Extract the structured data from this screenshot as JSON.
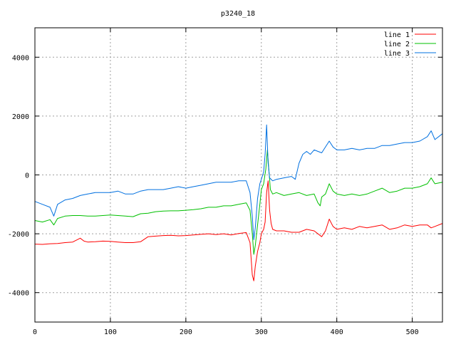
{
  "chart_data": {
    "type": "line",
    "title": "p3240_18",
    "xlabel": "",
    "ylabel": "",
    "xlim": [
      0,
      540
    ],
    "ylim": [
      -5000,
      5000
    ],
    "x_ticks": [
      0,
      100,
      200,
      300,
      400,
      500
    ],
    "y_ticks": [
      -4000,
      -2000,
      0,
      2000,
      4000
    ],
    "x_tick_labels": [
      "0",
      "100",
      "200",
      "300",
      "400",
      "500"
    ],
    "y_tick_labels": [
      "-4000",
      "-2000",
      "0",
      "2000",
      "4000"
    ],
    "grid": true,
    "legend_position": "top-right",
    "series": [
      {
        "name": "line 1",
        "color": "#ff0000",
        "points": [
          [
            0,
            -2350
          ],
          [
            10,
            -2360
          ],
          [
            20,
            -2340
          ],
          [
            30,
            -2330
          ],
          [
            40,
            -2300
          ],
          [
            50,
            -2280
          ],
          [
            60,
            -2150
          ],
          [
            65,
            -2250
          ],
          [
            70,
            -2280
          ],
          [
            80,
            -2270
          ],
          [
            90,
            -2250
          ],
          [
            100,
            -2260
          ],
          [
            110,
            -2280
          ],
          [
            120,
            -2300
          ],
          [
            130,
            -2300
          ],
          [
            140,
            -2270
          ],
          [
            150,
            -2100
          ],
          [
            160,
            -2080
          ],
          [
            170,
            -2060
          ],
          [
            180,
            -2050
          ],
          [
            190,
            -2070
          ],
          [
            200,
            -2060
          ],
          [
            210,
            -2040
          ],
          [
            220,
            -2020
          ],
          [
            230,
            -2000
          ],
          [
            240,
            -2030
          ],
          [
            250,
            -2000
          ],
          [
            260,
            -2040
          ],
          [
            270,
            -1990
          ],
          [
            280,
            -1960
          ],
          [
            285,
            -2300
          ],
          [
            288,
            -3400
          ],
          [
            290,
            -3600
          ],
          [
            292,
            -3100
          ],
          [
            295,
            -2600
          ],
          [
            298,
            -2300
          ],
          [
            300,
            -2000
          ],
          [
            303,
            -1850
          ],
          [
            305,
            -1600
          ],
          [
            307,
            -600
          ],
          [
            309,
            -200
          ],
          [
            311,
            -1200
          ],
          [
            313,
            -1650
          ],
          [
            315,
            -1850
          ],
          [
            320,
            -1900
          ],
          [
            330,
            -1900
          ],
          [
            340,
            -1950
          ],
          [
            350,
            -1950
          ],
          [
            360,
            -1850
          ],
          [
            370,
            -1900
          ],
          [
            380,
            -2100
          ],
          [
            385,
            -1900
          ],
          [
            390,
            -1500
          ],
          [
            395,
            -1750
          ],
          [
            400,
            -1850
          ],
          [
            410,
            -1800
          ],
          [
            420,
            -1850
          ],
          [
            430,
            -1750
          ],
          [
            440,
            -1800
          ],
          [
            450,
            -1750
          ],
          [
            460,
            -1700
          ],
          [
            470,
            -1850
          ],
          [
            480,
            -1800
          ],
          [
            490,
            -1700
          ],
          [
            500,
            -1750
          ],
          [
            510,
            -1700
          ],
          [
            520,
            -1700
          ],
          [
            525,
            -1800
          ],
          [
            530,
            -1750
          ],
          [
            540,
            -1650
          ]
        ]
      },
      {
        "name": "line 2",
        "color": "#00c000",
        "points": [
          [
            0,
            -1550
          ],
          [
            10,
            -1600
          ],
          [
            20,
            -1520
          ],
          [
            25,
            -1700
          ],
          [
            30,
            -1480
          ],
          [
            40,
            -1400
          ],
          [
            50,
            -1380
          ],
          [
            60,
            -1380
          ],
          [
            70,
            -1400
          ],
          [
            80,
            -1400
          ],
          [
            90,
            -1380
          ],
          [
            100,
            -1360
          ],
          [
            110,
            -1380
          ],
          [
            120,
            -1400
          ],
          [
            130,
            -1420
          ],
          [
            140,
            -1320
          ],
          [
            150,
            -1300
          ],
          [
            160,
            -1250
          ],
          [
            170,
            -1230
          ],
          [
            180,
            -1220
          ],
          [
            190,
            -1220
          ],
          [
            200,
            -1200
          ],
          [
            210,
            -1180
          ],
          [
            220,
            -1150
          ],
          [
            230,
            -1100
          ],
          [
            240,
            -1100
          ],
          [
            250,
            -1050
          ],
          [
            260,
            -1050
          ],
          [
            270,
            -1000
          ],
          [
            280,
            -950
          ],
          [
            285,
            -1200
          ],
          [
            288,
            -2000
          ],
          [
            290,
            -2700
          ],
          [
            292,
            -2400
          ],
          [
            295,
            -1700
          ],
          [
            298,
            -1000
          ],
          [
            300,
            -500
          ],
          [
            303,
            -300
          ],
          [
            306,
            200
          ],
          [
            308,
            850
          ],
          [
            310,
            150
          ],
          [
            312,
            -500
          ],
          [
            315,
            -650
          ],
          [
            320,
            -600
          ],
          [
            330,
            -700
          ],
          [
            340,
            -650
          ],
          [
            350,
            -600
          ],
          [
            360,
            -700
          ],
          [
            370,
            -650
          ],
          [
            375,
            -950
          ],
          [
            378,
            -1050
          ],
          [
            380,
            -750
          ],
          [
            385,
            -650
          ],
          [
            390,
            -300
          ],
          [
            395,
            -550
          ],
          [
            400,
            -650
          ],
          [
            410,
            -700
          ],
          [
            420,
            -650
          ],
          [
            430,
            -700
          ],
          [
            440,
            -650
          ],
          [
            450,
            -550
          ],
          [
            460,
            -450
          ],
          [
            470,
            -600
          ],
          [
            480,
            -550
          ],
          [
            490,
            -450
          ],
          [
            500,
            -450
          ],
          [
            510,
            -400
          ],
          [
            520,
            -300
          ],
          [
            525,
            -100
          ],
          [
            530,
            -300
          ],
          [
            540,
            -250
          ]
        ]
      },
      {
        "name": "line 3",
        "color": "#0070e0",
        "points": [
          [
            0,
            -900
          ],
          [
            10,
            -1000
          ],
          [
            20,
            -1100
          ],
          [
            25,
            -1400
          ],
          [
            30,
            -1000
          ],
          [
            40,
            -850
          ],
          [
            50,
            -800
          ],
          [
            60,
            -700
          ],
          [
            70,
            -650
          ],
          [
            80,
            -600
          ],
          [
            90,
            -600
          ],
          [
            100,
            -600
          ],
          [
            110,
            -550
          ],
          [
            120,
            -650
          ],
          [
            130,
            -650
          ],
          [
            140,
            -550
          ],
          [
            150,
            -500
          ],
          [
            160,
            -500
          ],
          [
            170,
            -500
          ],
          [
            180,
            -450
          ],
          [
            190,
            -400
          ],
          [
            200,
            -450
          ],
          [
            210,
            -400
          ],
          [
            220,
            -350
          ],
          [
            230,
            -300
          ],
          [
            240,
            -250
          ],
          [
            250,
            -250
          ],
          [
            260,
            -250
          ],
          [
            270,
            -200
          ],
          [
            280,
            -200
          ],
          [
            285,
            -600
          ],
          [
            288,
            -1400
          ],
          [
            290,
            -2200
          ],
          [
            292,
            -1800
          ],
          [
            295,
            -800
          ],
          [
            298,
            -300
          ],
          [
            300,
            -150
          ],
          [
            303,
            100
          ],
          [
            305,
            700
          ],
          [
            307,
            1700
          ],
          [
            309,
            400
          ],
          [
            311,
            -100
          ],
          [
            315,
            -200
          ],
          [
            320,
            -150
          ],
          [
            330,
            -100
          ],
          [
            340,
            -50
          ],
          [
            345,
            -150
          ],
          [
            350,
            400
          ],
          [
            355,
            700
          ],
          [
            360,
            800
          ],
          [
            365,
            700
          ],
          [
            370,
            850
          ],
          [
            380,
            750
          ],
          [
            390,
            1150
          ],
          [
            395,
            950
          ],
          [
            400,
            850
          ],
          [
            410,
            850
          ],
          [
            420,
            900
          ],
          [
            430,
            850
          ],
          [
            440,
            900
          ],
          [
            450,
            900
          ],
          [
            460,
            1000
          ],
          [
            470,
            1000
          ],
          [
            480,
            1050
          ],
          [
            490,
            1100
          ],
          [
            500,
            1100
          ],
          [
            510,
            1150
          ],
          [
            520,
            1300
          ],
          [
            525,
            1500
          ],
          [
            530,
            1200
          ],
          [
            540,
            1400
          ]
        ]
      }
    ]
  }
}
